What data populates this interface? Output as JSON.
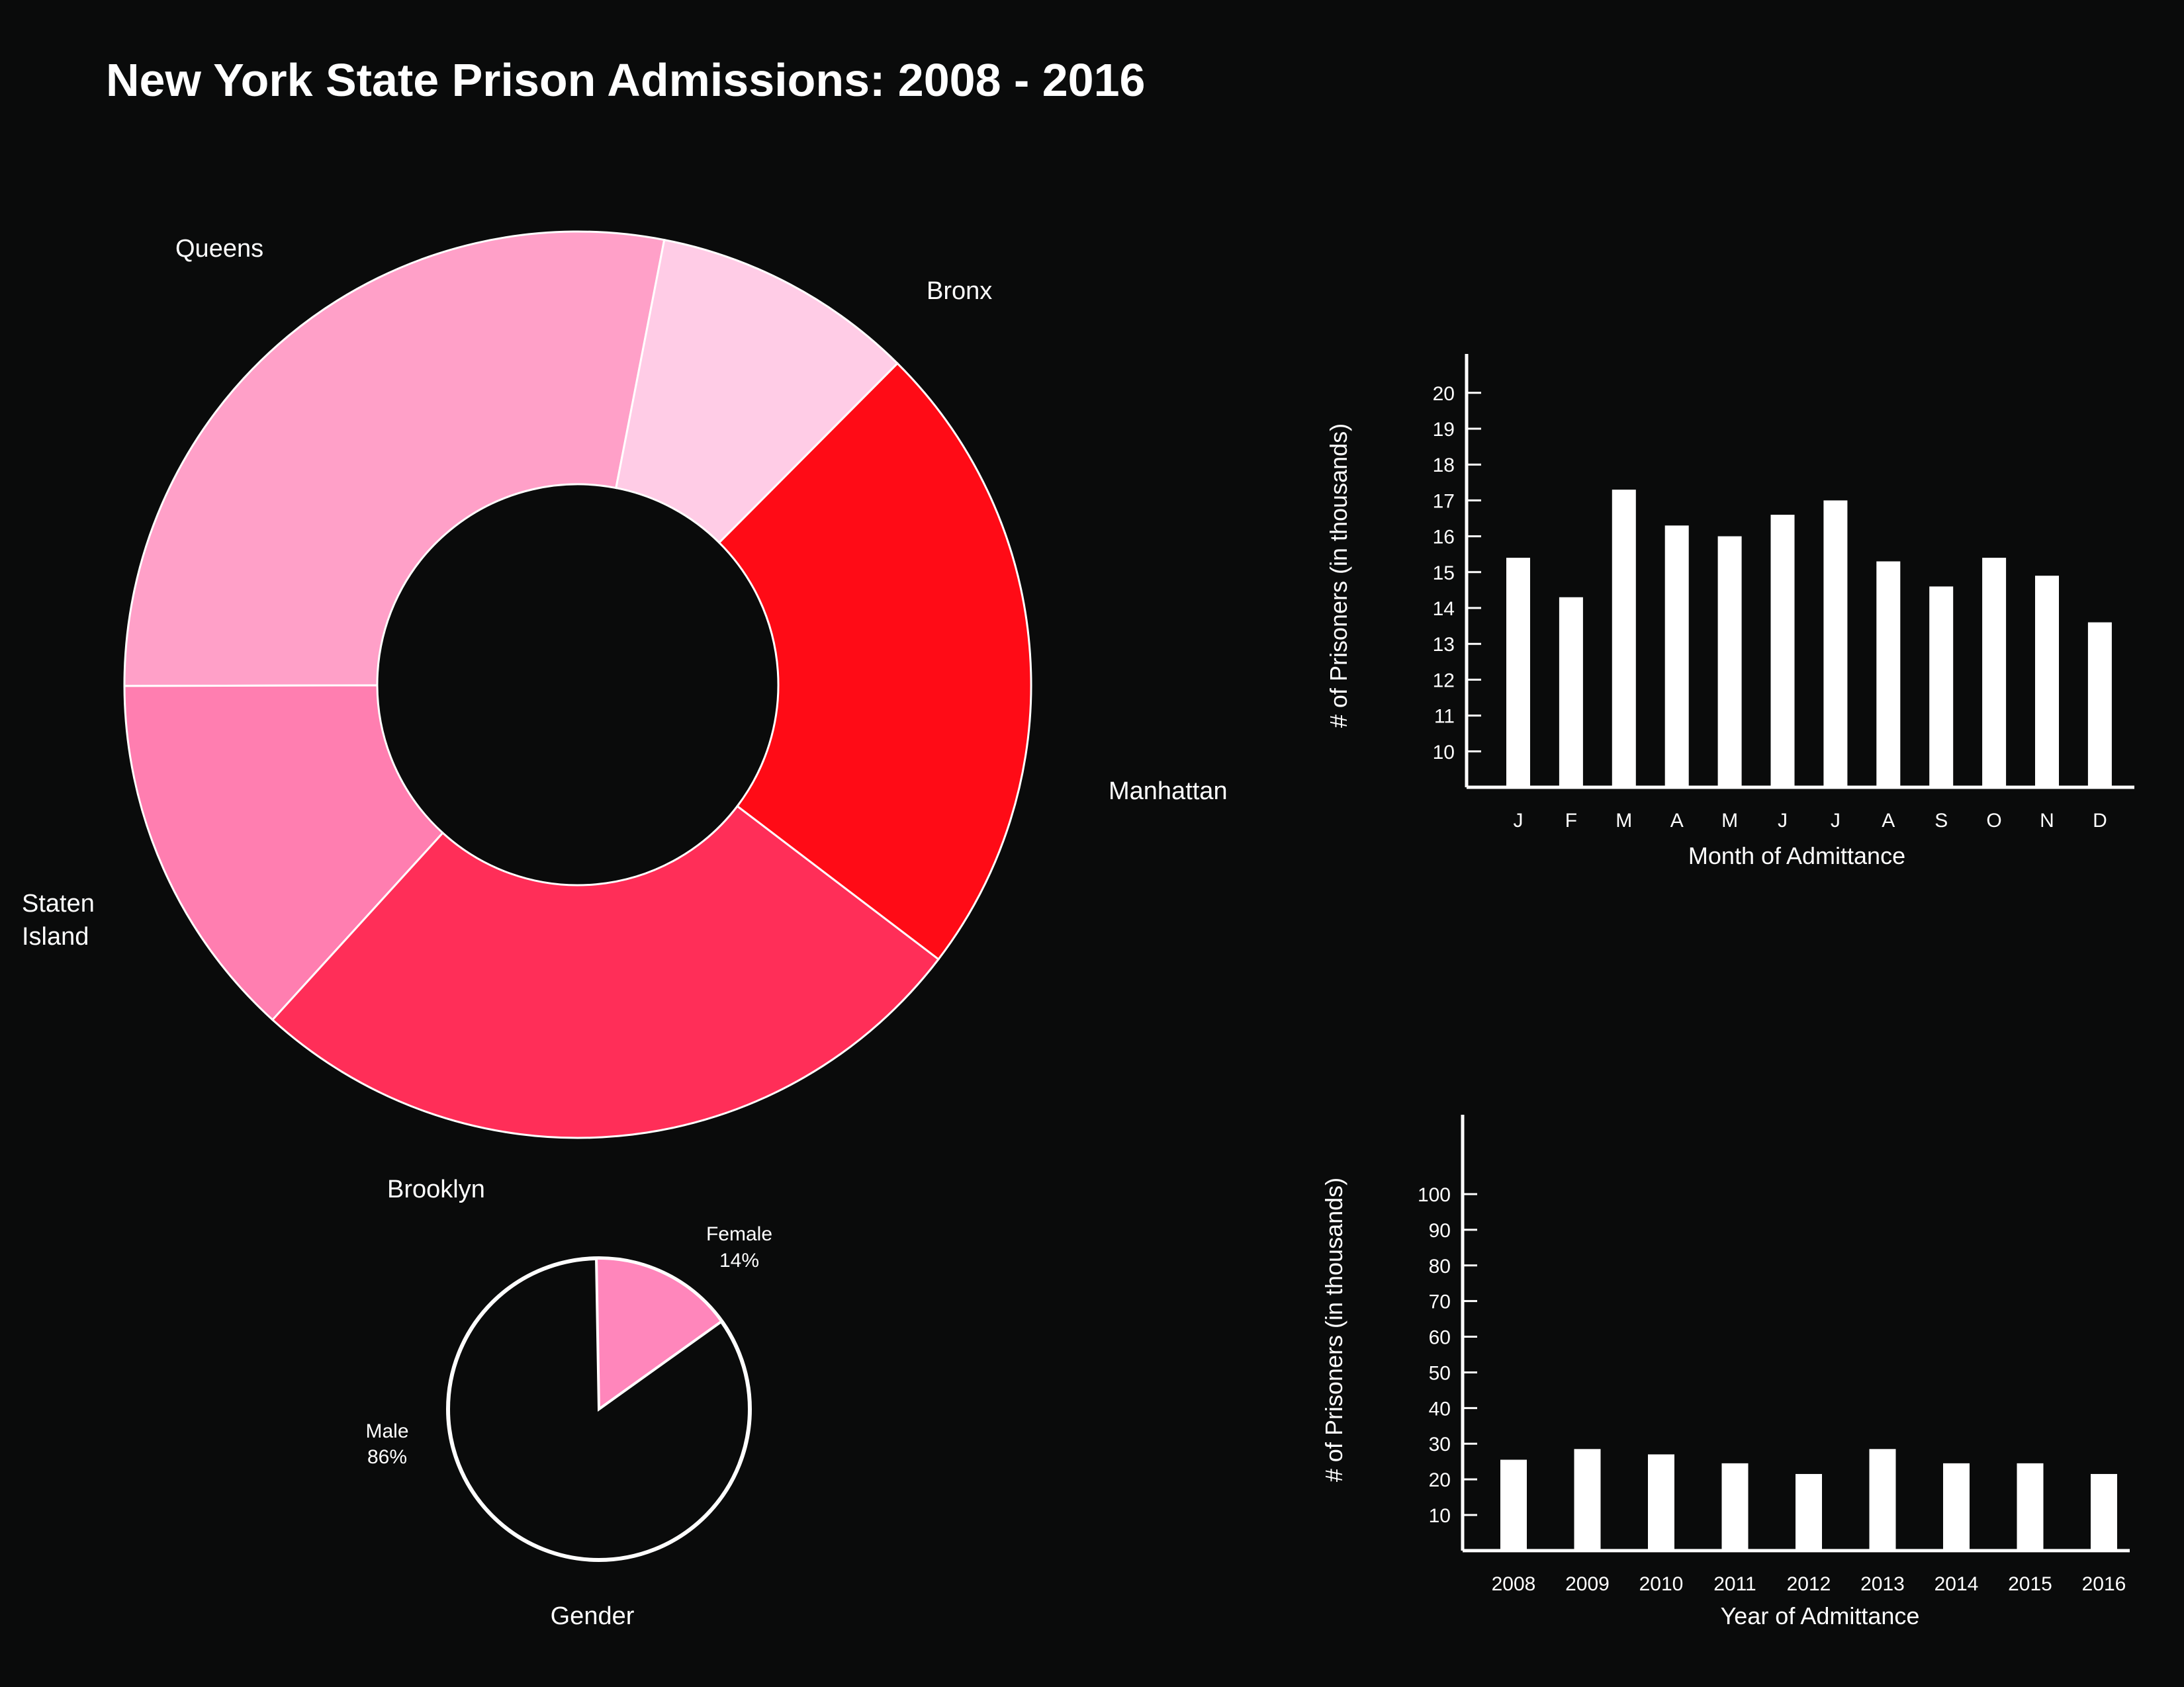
{
  "title": "New York State Prison Admissions: 2008 - 2016",
  "colors": {
    "background": "#0a0b0b",
    "queens": "#ffa0c8",
    "bronx": "#ff7eb0",
    "manhattan": "#ff2e58",
    "brooklyn": "#ff0b16",
    "staten_island": "#ffcce6",
    "female": "#ff86bb",
    "bars": "#ffffff"
  },
  "chart_data": [
    {
      "type": "pie",
      "variant": "donut",
      "title": "",
      "labels": [
        "Queens",
        "Bronx",
        "Manhattan",
        "Brooklyn",
        "Staten Island"
      ],
      "label_lines": {
        "staten_island": [
          "Staten",
          "Island"
        ]
      },
      "values": [
        28.1,
        13.2,
        26.4,
        22.9,
        9.4
      ],
      "colors": [
        "#ffa0c8",
        "#ff7eb0",
        "#ff2e58",
        "#ff0b16",
        "#ffcce6"
      ]
    },
    {
      "type": "pie",
      "title": "Gender",
      "labels": [
        "Female",
        "Male"
      ],
      "values": [
        14,
        86
      ],
      "value_labels": [
        "14%",
        "86%"
      ],
      "colors": [
        "#ff86bb",
        "#0a0b0b"
      ]
    },
    {
      "type": "bar",
      "title": "",
      "xlabel": "Month of Admittance",
      "ylabel": "# of Prisoners (in thousands)",
      "categories": [
        "J",
        "F",
        "M",
        "A",
        "M",
        "J",
        "J",
        "A",
        "S",
        "O",
        "N",
        "D"
      ],
      "values": [
        15.4,
        14.3,
        17.3,
        16.3,
        16.0,
        16.6,
        17.0,
        15.3,
        14.6,
        15.4,
        14.9,
        13.6
      ],
      "yticks": [
        10,
        11,
        12,
        13,
        14,
        15,
        16,
        17,
        18,
        19,
        20
      ],
      "ylim": [
        9,
        21
      ],
      "grid": false
    },
    {
      "type": "bar",
      "title": "",
      "xlabel": "Year of Admittance",
      "ylabel": "# of Prisoners (in thousands)",
      "categories": [
        "2008",
        "2009",
        "2010",
        "2011",
        "2012",
        "2013",
        "2014",
        "2015",
        "2016"
      ],
      "values": [
        25.5,
        28.5,
        27,
        24.5,
        21.5,
        28.5,
        24.5,
        24.5,
        21.5
      ],
      "yticks": [
        10,
        20,
        30,
        40,
        50,
        60,
        70,
        80,
        90,
        100
      ],
      "ylim": [
        0,
        120
      ],
      "grid": false
    }
  ]
}
